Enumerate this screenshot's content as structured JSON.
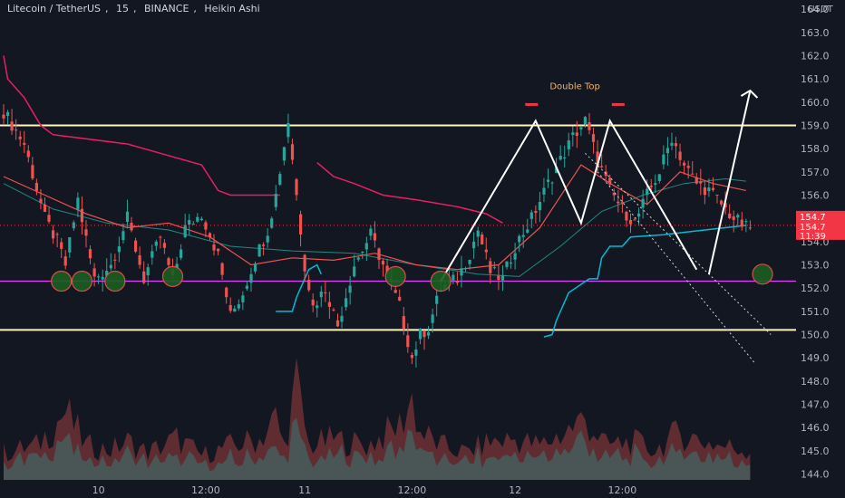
{
  "header": {
    "symbol": "Litecoin / TetherUS",
    "interval": "15",
    "exchange": "BINANCE",
    "chart_style": "Heikin Ashi"
  },
  "currency_badge": "USDT",
  "price_tags": {
    "last_price": "154.7",
    "close_price": "154.7",
    "countdown": "11:39"
  },
  "annotations": {
    "double_top": "Double Top"
  },
  "colors": {
    "background": "#131722",
    "up": "#26a69a",
    "down": "#ef5350",
    "resistance": "#fff3bf",
    "support_line": "#e040fb",
    "trailing_stop": "#e91e63",
    "vwap": "#00bcd4",
    "ema_fast": "#ef5350",
    "ema_slow": "#26a69a",
    "price_tag": "#f23645",
    "marker_fill": "#1b5e20",
    "marker_border": "#ef5350",
    "projection": "#ffffff"
  },
  "chart_data": {
    "type": "candlestick",
    "title": "Litecoin / TetherUS, 15, BINANCE, Heikin Ashi",
    "x_ticks": [
      "10",
      "12:00",
      "11",
      "12:00",
      "12",
      "12:00"
    ],
    "y_ticks": [
      "164.0",
      "163.0",
      "162.0",
      "161.0",
      "160.0",
      "159.0",
      "158.0",
      "157.0",
      "156.0",
      "155.0",
      "154.0",
      "153.0",
      "152.0",
      "151.0",
      "150.0",
      "149.0",
      "148.0",
      "147.0",
      "146.0",
      "145.0",
      "144.0"
    ],
    "ylim": [
      143.75,
      164.2
    ],
    "levels": {
      "resistance": 159.0,
      "support_mid": 152.3,
      "support_low": 150.2
    },
    "price_path": [
      [
        0,
        159.6
      ],
      [
        5,
        158.2
      ],
      [
        10,
        155.0
      ],
      [
        13,
        154.0
      ],
      [
        15,
        153.0
      ],
      [
        18,
        155.8
      ],
      [
        22,
        152.4
      ],
      [
        26,
        153.0
      ],
      [
        30,
        155.0
      ],
      [
        34,
        152.4
      ],
      [
        38,
        154.2
      ],
      [
        41,
        152.3
      ],
      [
        44,
        154.6
      ],
      [
        48,
        155.2
      ],
      [
        52,
        153.4
      ],
      [
        55,
        150.8
      ],
      [
        58,
        151.8
      ],
      [
        61,
        153.3
      ],
      [
        64,
        154.5
      ],
      [
        66,
        156.0
      ],
      [
        69,
        159.2
      ],
      [
        71,
        156.0
      ],
      [
        73,
        153.0
      ],
      [
        75,
        151.2
      ],
      [
        78,
        152.0
      ],
      [
        81,
        150.4
      ],
      [
        85,
        153.0
      ],
      [
        89,
        154.3
      ],
      [
        92,
        153.0
      ],
      [
        96,
        151.2
      ],
      [
        99,
        149.0
      ],
      [
        101,
        150.0
      ],
      [
        103,
        150.3
      ],
      [
        106,
        152.0
      ],
      [
        110,
        152.4
      ],
      [
        113,
        153.5
      ],
      [
        115,
        154.5
      ],
      [
        118,
        152.7
      ],
      [
        121,
        152.4
      ],
      [
        124,
        153.8
      ],
      [
        128,
        155.0
      ],
      [
        132,
        156.5
      ],
      [
        135,
        157.5
      ],
      [
        138,
        158.5
      ],
      [
        141,
        159.2
      ],
      [
        144,
        157.5
      ],
      [
        147,
        156.2
      ],
      [
        150,
        155.4
      ],
      [
        153,
        154.8
      ],
      [
        156,
        156.0
      ],
      [
        159,
        157.0
      ],
      [
        162,
        158.5
      ],
      [
        165,
        157.3
      ],
      [
        168,
        156.5
      ],
      [
        171,
        156.2
      ],
      [
        174,
        155.6
      ],
      [
        177,
        155.0
      ],
      [
        180,
        154.6
      ]
    ],
    "volume_path": [
      [
        0,
        0.2
      ],
      [
        8,
        0.25
      ],
      [
        15,
        0.5
      ],
      [
        20,
        0.25
      ],
      [
        26,
        0.22
      ],
      [
        30,
        0.28
      ],
      [
        35,
        0.2
      ],
      [
        42,
        0.3
      ],
      [
        48,
        0.18
      ],
      [
        55,
        0.25
      ],
      [
        62,
        0.3
      ],
      [
        66,
        0.45
      ],
      [
        68,
        0.25
      ],
      [
        71,
        0.7
      ],
      [
        74,
        0.25
      ],
      [
        80,
        0.3
      ],
      [
        88,
        0.25
      ],
      [
        96,
        0.4
      ],
      [
        99,
        0.6
      ],
      [
        101,
        0.35
      ],
      [
        106,
        0.25
      ],
      [
        112,
        0.2
      ],
      [
        118,
        0.28
      ],
      [
        124,
        0.3
      ],
      [
        130,
        0.25
      ],
      [
        136,
        0.35
      ],
      [
        141,
        0.45
      ],
      [
        146,
        0.25
      ],
      [
        152,
        0.28
      ],
      [
        158,
        0.22
      ],
      [
        164,
        0.35
      ],
      [
        168,
        0.3
      ],
      [
        174,
        0.25
      ],
      [
        180,
        0.22
      ]
    ],
    "trailing_stop": [
      [
        0,
        162.0
      ],
      [
        1,
        161.0
      ],
      [
        5,
        160.2
      ],
      [
        9,
        159.0
      ],
      [
        12,
        158.6
      ],
      [
        30,
        158.2
      ],
      [
        38,
        157.8
      ],
      [
        48,
        157.3
      ],
      [
        52,
        156.2
      ],
      [
        55,
        156.0
      ],
      [
        67,
        156.0
      ]
    ],
    "trailing_stop_2": [
      [
        76,
        157.4
      ],
      [
        80,
        156.8
      ],
      [
        85,
        156.5
      ],
      [
        92,
        156.0
      ],
      [
        100,
        155.8
      ],
      [
        110,
        155.5
      ],
      [
        117,
        155.2
      ],
      [
        121,
        154.8
      ]
    ],
    "vwap": [
      [
        66,
        151.0
      ],
      [
        70,
        151.0
      ],
      [
        71,
        151.6
      ],
      [
        74,
        152.8
      ],
      [
        76,
        153.0
      ],
      [
        77,
        152.6
      ]
    ],
    "vwap_2": [
      [
        131,
        149.9
      ],
      [
        133,
        150.0
      ],
      [
        134,
        150.6
      ],
      [
        137,
        151.8
      ],
      [
        142,
        152.4
      ],
      [
        144,
        152.4
      ],
      [
        145,
        153.3
      ],
      [
        147,
        153.8
      ],
      [
        150,
        153.8
      ],
      [
        152,
        154.2
      ],
      [
        160,
        154.3
      ],
      [
        170,
        154.5
      ],
      [
        180,
        154.7
      ]
    ],
    "ema_fast": [
      [
        0,
        156.8
      ],
      [
        10,
        156.0
      ],
      [
        20,
        155.2
      ],
      [
        30,
        154.6
      ],
      [
        40,
        154.8
      ],
      [
        50,
        154.2
      ],
      [
        60,
        153.0
      ],
      [
        70,
        153.3
      ],
      [
        80,
        153.2
      ],
      [
        90,
        153.5
      ],
      [
        100,
        153.0
      ],
      [
        110,
        152.8
      ],
      [
        120,
        153.0
      ],
      [
        130,
        154.6
      ],
      [
        140,
        157.3
      ],
      [
        148,
        156.4
      ],
      [
        156,
        155.6
      ],
      [
        164,
        157.0
      ],
      [
        172,
        156.5
      ],
      [
        180,
        156.2
      ]
    ],
    "ema_slow": [
      [
        0,
        156.5
      ],
      [
        12,
        155.4
      ],
      [
        25,
        154.8
      ],
      [
        40,
        154.5
      ],
      [
        55,
        153.8
      ],
      [
        70,
        153.6
      ],
      [
        85,
        153.5
      ],
      [
        100,
        153.0
      ],
      [
        115,
        152.6
      ],
      [
        125,
        152.5
      ],
      [
        135,
        153.8
      ],
      [
        145,
        155.3
      ],
      [
        155,
        156.0
      ],
      [
        165,
        156.5
      ],
      [
        175,
        156.7
      ],
      [
        180,
        156.6
      ]
    ],
    "markers": [
      {
        "x": 14,
        "y": 152.3
      },
      {
        "x": 19,
        "y": 152.3
      },
      {
        "x": 27,
        "y": 152.3
      },
      {
        "x": 41,
        "y": 152.5
      },
      {
        "x": 95,
        "y": 152.5
      },
      {
        "x": 106,
        "y": 152.3
      },
      {
        "x": 184,
        "y": 152.6
      }
    ],
    "zigzag": [
      [
        106,
        152.3
      ],
      [
        129,
        159.2
      ],
      [
        140,
        154.8
      ],
      [
        147,
        159.2
      ],
      [
        168,
        152.8
      ]
    ],
    "projection": [
      [
        171,
        152.6
      ],
      [
        181,
        160.5
      ]
    ],
    "projection_arrow_tip": [
      182,
      160.5
    ],
    "double_top_marks": [
      {
        "x": 128,
        "y": 159.9
      },
      {
        "x": 149,
        "y": 159.9
      }
    ],
    "channel_upper": [
      [
        141,
        157.8
      ],
      [
        186,
        150.0
      ]
    ],
    "channel_lower": [
      [
        144,
        157.0
      ],
      [
        182,
        148.8
      ]
    ]
  }
}
